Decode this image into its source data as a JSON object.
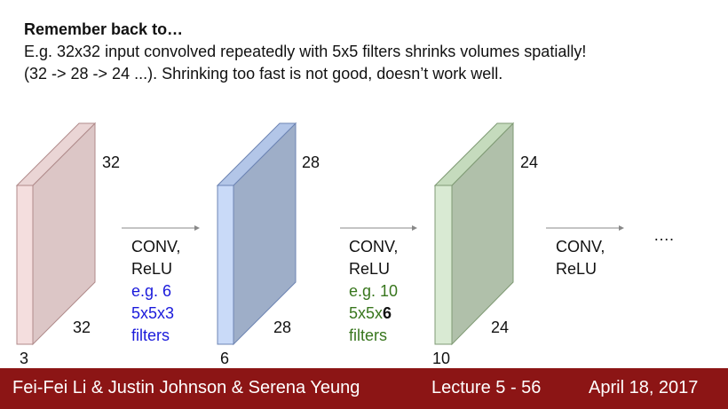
{
  "heading": "Remember back to…",
  "body": [
    "E.g. 32x32 input convolved repeatedly with 5x5 filters shrinks volumes spatially!",
    "(32 -> 28 -> 24 ...). Shrinking too fast is not good, doesn’t work well."
  ],
  "volumes": [
    {
      "height": "32",
      "width": "32",
      "depth": "3"
    },
    {
      "height": "28",
      "width": "28",
      "depth": "6"
    },
    {
      "height": "24",
      "width": "24",
      "depth": "10"
    }
  ],
  "steps": [
    {
      "op": [
        "CONV,",
        "ReLU"
      ],
      "note": [
        "e.g. 6",
        "5x5x3",
        "filters"
      ]
    },
    {
      "op": [
        "CONV,",
        "ReLU"
      ],
      "note": [
        "e.g. 10",
        "5x5x",
        "filters"
      ],
      "note_bold": "6"
    },
    {
      "op": [
        "CONV,",
        "ReLU"
      ]
    }
  ],
  "ellipsis": "….",
  "footer": {
    "authors": "Fei-Fei Li & Justin Johnson & Serena Yeung",
    "lecture": "Lecture 5 - 56",
    "date": "April 18, 2017"
  }
}
